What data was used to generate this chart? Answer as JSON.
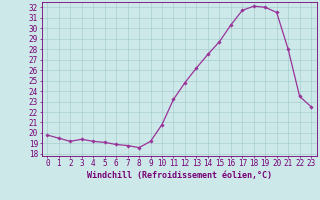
{
  "x": [
    0,
    1,
    2,
    3,
    4,
    5,
    6,
    7,
    8,
    9,
    10,
    11,
    12,
    13,
    14,
    15,
    16,
    17,
    18,
    19,
    20,
    21,
    22,
    23
  ],
  "y": [
    19.8,
    19.5,
    19.2,
    19.4,
    19.2,
    19.1,
    18.9,
    18.8,
    18.6,
    19.2,
    20.8,
    23.2,
    24.8,
    26.2,
    27.5,
    28.7,
    30.3,
    31.7,
    32.1,
    32.0,
    31.5,
    28.0,
    23.5,
    22.5
  ],
  "line_color": "#993399",
  "marker": "D",
  "markersize": 1.8,
  "linewidth": 0.9,
  "xlabel": "Windchill (Refroidissement éolien,°C)",
  "xlabel_fontsize": 6,
  "ylabel_ticks": [
    18,
    19,
    20,
    21,
    22,
    23,
    24,
    25,
    26,
    27,
    28,
    29,
    30,
    31,
    32
  ],
  "xtick_labels": [
    "0",
    "1",
    "2",
    "3",
    "4",
    "5",
    "6",
    "7",
    "8",
    "9",
    "10",
    "11",
    "12",
    "13",
    "14",
    "15",
    "16",
    "17",
    "18",
    "19",
    "20",
    "21",
    "22",
    "23"
  ],
  "xlim": [
    -0.5,
    23.5
  ],
  "ylim": [
    17.8,
    32.5
  ],
  "bg_color": "#cce8e8",
  "grid_color": "#a0c8c8",
  "tick_color": "#770077",
  "spine_color": "#770077",
  "label_fontsize": 5.5
}
